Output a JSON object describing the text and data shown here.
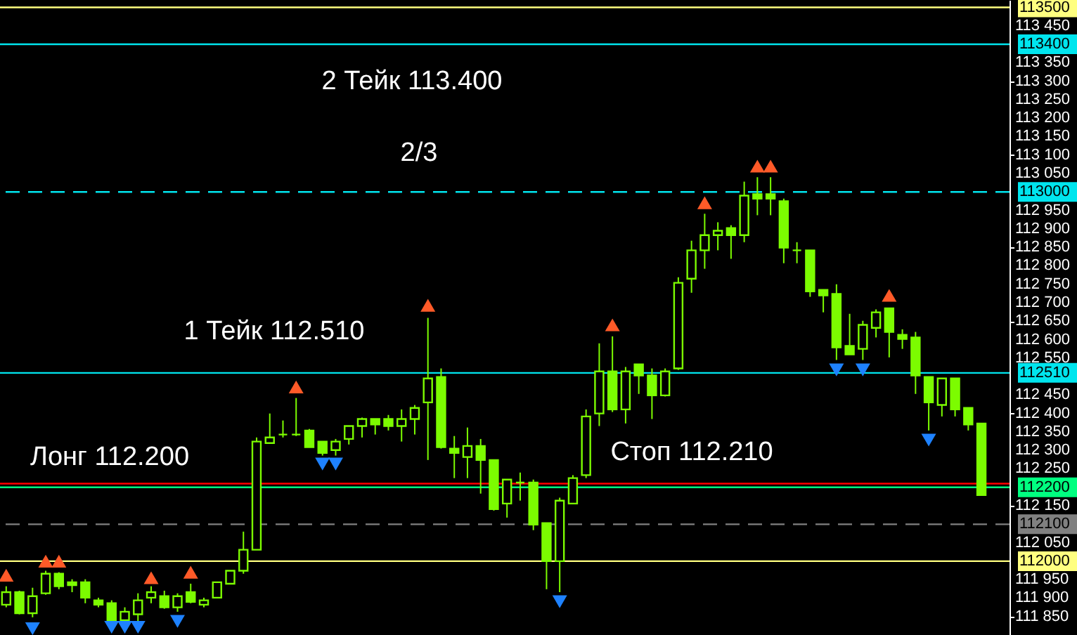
{
  "chart_data": {
    "type": "candlestick",
    "categories": [
      null,
      null,
      null,
      null,
      null,
      null,
      null,
      null,
      null,
      null,
      null,
      null,
      null,
      null,
      null,
      null,
      null,
      null,
      null,
      null,
      null,
      null,
      null,
      null,
      null,
      null,
      null,
      null,
      null,
      null,
      null,
      null,
      null,
      null,
      null,
      null,
      null,
      null,
      null,
      null,
      null,
      null,
      null,
      null,
      null,
      null,
      null,
      null,
      null,
      null,
      null,
      null,
      null,
      null,
      null,
      null,
      null,
      null,
      null,
      null,
      null,
      null,
      null,
      null,
      null,
      null,
      null,
      null,
      null,
      null,
      null,
      null,
      null,
      null,
      null
    ],
    "color": "#7cfc00",
    "ohlc": [
      [
        111882,
        111932,
        111875,
        111916
      ],
      [
        111916,
        111920,
        111856,
        111859
      ],
      [
        111859,
        111928,
        111848,
        111905
      ],
      [
        111913,
        111974,
        111909,
        111966
      ],
      [
        111966,
        111970,
        111924,
        111932
      ],
      [
        111943,
        111951,
        111916,
        111935
      ],
      [
        111943,
        111951,
        111886,
        111901
      ],
      [
        111894,
        111901,
        111875,
        111882
      ],
      [
        111886,
        111894,
        111837,
        111840
      ],
      [
        111840,
        111875,
        111837,
        111863
      ],
      [
        111856,
        111913,
        111837,
        111894
      ],
      [
        111901,
        111932,
        111886,
        111916
      ],
      [
        111905,
        111920,
        111871,
        111875
      ],
      [
        111875,
        111913,
        111863,
        111905
      ],
      [
        111916,
        111939,
        111886,
        111890
      ],
      [
        111882,
        111901,
        111875,
        111894
      ],
      [
        111901,
        111943,
        111901,
        111943
      ],
      [
        111939,
        111974,
        111939,
        111974
      ],
      [
        111974,
        112080,
        111966,
        112031
      ],
      [
        112031,
        112335,
        112031,
        112324
      ],
      [
        112320,
        112400,
        112320,
        112335
      ],
      [
        112343,
        112381,
        112335,
        112343
      ],
      [
        112343,
        112442,
        112339,
        112343
      ],
      [
        112354,
        112358,
        112309,
        112309
      ],
      [
        112324,
        112324,
        112286,
        112293
      ],
      [
        112301,
        112331,
        112286,
        112324
      ],
      [
        112331,
        112366,
        112316,
        112366
      ],
      [
        112366,
        112389,
        112335,
        112385
      ],
      [
        112385,
        112385,
        112343,
        112370
      ],
      [
        112385,
        112396,
        112354,
        112366
      ],
      [
        112366,
        112411,
        112324,
        112385
      ],
      [
        112385,
        112423,
        112343,
        112415
      ],
      [
        112430,
        112659,
        112274,
        112495
      ],
      [
        112499,
        112522,
        112305,
        112309
      ],
      [
        112305,
        112339,
        112225,
        112293
      ],
      [
        112282,
        112362,
        112225,
        112312
      ],
      [
        112312,
        112331,
        112183,
        112274
      ],
      [
        112274,
        112274,
        112137,
        112141
      ],
      [
        112156,
        112221,
        112118,
        112221
      ],
      [
        112213,
        112240,
        112164,
        112213
      ],
      [
        112213,
        112221,
        112084,
        112099
      ],
      [
        112103,
        112103,
        111924,
        112000
      ],
      [
        112000,
        112172,
        111916,
        112164
      ],
      [
        112156,
        112233,
        112156,
        112225
      ],
      [
        112233,
        112411,
        112225,
        112392
      ],
      [
        112400,
        112590,
        112366,
        112514
      ],
      [
        112514,
        112609,
        112404,
        112411
      ],
      [
        112411,
        112526,
        112373,
        112514
      ],
      [
        112533,
        112533,
        112453,
        112503
      ],
      [
        112503,
        112522,
        112385,
        112449
      ],
      [
        112449,
        112522,
        112446,
        112514
      ],
      [
        112522,
        112769,
        112518,
        112754
      ],
      [
        112765,
        112868,
        112727,
        112842
      ],
      [
        112842,
        112941,
        112792,
        112883
      ],
      [
        112883,
        112918,
        112842,
        112895
      ],
      [
        112902,
        112910,
        112819,
        112883
      ],
      [
        112883,
        113028,
        112864,
        112990
      ],
      [
        112994,
        113040,
        112937,
        112982
      ],
      [
        112994,
        113040,
        112937,
        112982
      ],
      [
        112975,
        112982,
        112807,
        112849
      ],
      [
        112842,
        112864,
        112807,
        112842
      ],
      [
        112842,
        112842,
        112716,
        112731
      ],
      [
        112735,
        112735,
        112674,
        112720
      ],
      [
        112724,
        112750,
        112545,
        112579
      ],
      [
        112583,
        112670,
        112560,
        112560
      ],
      [
        112575,
        112651,
        112545,
        112640
      ],
      [
        112632,
        112682,
        112606,
        112674
      ],
      [
        112685,
        112685,
        112552,
        112621
      ],
      [
        112613,
        112628,
        112575,
        112602
      ],
      [
        112606,
        112621,
        112453,
        112503
      ],
      [
        112499,
        112499,
        112354,
        112430
      ],
      [
        112423,
        112495,
        112392,
        112495
      ],
      [
        112495,
        112495,
        112392,
        112411
      ],
      [
        112415,
        112415,
        112354,
        112370
      ],
      [
        112373,
        112373,
        112179,
        112179
      ]
    ],
    "series": [
      {
        "type": "scatter",
        "marker": "triangle",
        "color": "#ff5a28",
        "values": [
          111962,
          null,
          null,
          112000,
          112000,
          null,
          null,
          null,
          null,
          null,
          null,
          111955,
          null,
          null,
          111970,
          null,
          null,
          null,
          null,
          null,
          null,
          null,
          112472,
          null,
          null,
          null,
          null,
          null,
          null,
          null,
          null,
          null,
          112693,
          null,
          null,
          null,
          null,
          null,
          null,
          null,
          null,
          null,
          null,
          null,
          null,
          null,
          112640,
          null,
          null,
          null,
          null,
          null,
          null,
          112971,
          null,
          null,
          null,
          113070,
          113070,
          null,
          null,
          null,
          null,
          null,
          null,
          null,
          null,
          112720,
          null,
          null,
          null,
          null,
          null,
          null,
          null
        ]
      },
      {
        "type": "scatter",
        "marker": "triangle",
        "color": "#1e82ff",
        "values": [
          null,
          null,
          111817,
          null,
          null,
          null,
          null,
          null,
          111821,
          111821,
          111821,
          null,
          null,
          111837,
          null,
          null,
          null,
          null,
          null,
          null,
          null,
          null,
          null,
          null,
          112263,
          112263,
          null,
          null,
          null,
          null,
          null,
          null,
          null,
          null,
          null,
          null,
          null,
          null,
          null,
          null,
          null,
          null,
          111890,
          null,
          null,
          null,
          null,
          null,
          null,
          null,
          null,
          null,
          null,
          null,
          null,
          null,
          null,
          null,
          null,
          null,
          null,
          null,
          null,
          112518,
          null,
          112518,
          null,
          null,
          null,
          null,
          112328,
          null,
          null,
          null,
          null
        ]
      }
    ],
    "ylim": [
      111800,
      113520
    ],
    "yticks": [
      {
        "value": 111850,
        "label": "111 850"
      },
      {
        "value": 111900,
        "label": "111 900"
      },
      {
        "value": 111950,
        "label": "111 950"
      },
      {
        "value": 112050,
        "label": "112 050"
      },
      {
        "value": 112150,
        "label": "112 150"
      },
      {
        "value": 112250,
        "label": "112 250"
      },
      {
        "value": 112300,
        "label": "112 300"
      },
      {
        "value": 112350,
        "label": "112 350"
      },
      {
        "value": 112400,
        "label": "112 400"
      },
      {
        "value": 112450,
        "label": "112 450"
      },
      {
        "value": 112550,
        "label": "112 550"
      },
      {
        "value": 112600,
        "label": "112 600"
      },
      {
        "value": 112650,
        "label": "112 650"
      },
      {
        "value": 112700,
        "label": "112 700"
      },
      {
        "value": 112750,
        "label": "112 750"
      },
      {
        "value": 112800,
        "label": "112 800"
      },
      {
        "value": 112850,
        "label": "112 850"
      },
      {
        "value": 112900,
        "label": "112 900"
      },
      {
        "value": 112950,
        "label": "112 950"
      },
      {
        "value": 113050,
        "label": "113 050"
      },
      {
        "value": 113100,
        "label": "113 100"
      },
      {
        "value": 113150,
        "label": "113 150"
      },
      {
        "value": 113200,
        "label": "113 200"
      },
      {
        "value": 113250,
        "label": "113 250"
      },
      {
        "value": 113300,
        "label": "113 300"
      },
      {
        "value": 113350,
        "label": "113 350"
      },
      {
        "value": 113450,
        "label": "113 450"
      }
    ],
    "tick_labels": "y",
    "ref_lines": [
      {
        "axis": "y",
        "value": 113500,
        "label": "113500",
        "color": "#ffff80",
        "line_style": "solid"
      },
      {
        "axis": "y",
        "value": 113400,
        "label": "113400",
        "color": "#00e5ee",
        "line_style": "solid"
      },
      {
        "axis": "y",
        "value": 113000,
        "label": "113000",
        "color": "#00e5ee",
        "line_style": "dashed"
      },
      {
        "axis": "y",
        "value": 112510,
        "label": "112510",
        "color": "#00e5ee",
        "line_style": "solid"
      },
      {
        "axis": "y",
        "value": 112210,
        "label": null,
        "color": "#ff0000",
        "line_style": "solid"
      },
      {
        "axis": "y",
        "value": 112200,
        "label": "112200",
        "color": "#00ff80",
        "line_style": "solid"
      },
      {
        "axis": "y",
        "value": 112100,
        "label": "112100",
        "color": "#808080",
        "line_style": "dashed"
      },
      {
        "axis": "y",
        "value": 112000,
        "label": "112000",
        "color": "#ffff80",
        "line_style": "solid"
      }
    ],
    "annotations": [
      {
        "text": "2 Тейк 113.400",
        "y": 113400
      },
      {
        "text": "2/3",
        "y": 113000
      },
      {
        "text": "1 Тейк 112.510",
        "y": 112510
      },
      {
        "text": "Лонг 112.200",
        "y": 112200
      },
      {
        "text": "Стоп 112.210",
        "y": 112210
      }
    ]
  }
}
